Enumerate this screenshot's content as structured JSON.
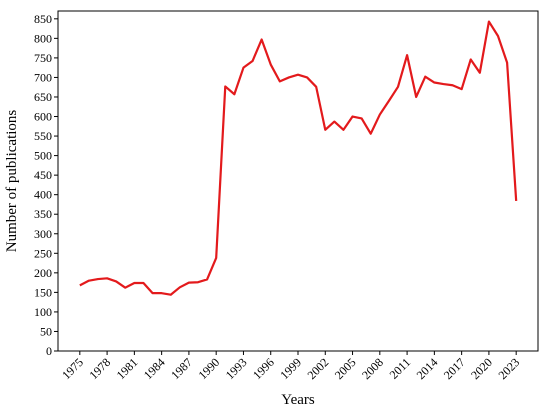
{
  "chart_data": {
    "type": "line",
    "x_label": "Years",
    "y_label": "Number of publications",
    "x": [
      1975,
      1976,
      1977,
      1978,
      1979,
      1980,
      1981,
      1982,
      1983,
      1984,
      1985,
      1986,
      1987,
      1988,
      1989,
      1990,
      1991,
      1992,
      1993,
      1994,
      1995,
      1996,
      1997,
      1998,
      1999,
      2000,
      2001,
      2002,
      2003,
      2004,
      2005,
      2006,
      2007,
      2008,
      2009,
      2010,
      2011,
      2012,
      2013,
      2014,
      2015,
      2016,
      2017,
      2018,
      2019,
      2020,
      2021,
      2022,
      2023
    ],
    "series": [
      {
        "color": "#e31a1c",
        "values": [
          168,
          180,
          184,
          186,
          178,
          162,
          174,
          174,
          148,
          148,
          144,
          163,
          175,
          176,
          183,
          238,
          677,
          657,
          725,
          742,
          797,
          733,
          690,
          700,
          707,
          700,
          676,
          566,
          587,
          566,
          600,
          595,
          556,
          605,
          640,
          676,
          757,
          650,
          702,
          687,
          683,
          680,
          670,
          746,
          712,
          843,
          806,
          738,
          384
        ]
      }
    ],
    "xlim": [
      1972.6,
      2025.4
    ],
    "xticks": [
      1975,
      1978,
      1981,
      1984,
      1987,
      1990,
      1993,
      1996,
      1999,
      2002,
      2005,
      2008,
      2011,
      2014,
      2017,
      2020,
      2023
    ],
    "ylim": [
      0,
      870
    ],
    "yticks": [
      0,
      50,
      100,
      150,
      200,
      250,
      300,
      350,
      400,
      450,
      500,
      550,
      600,
      650,
      700,
      750,
      800,
      850
    ]
  }
}
